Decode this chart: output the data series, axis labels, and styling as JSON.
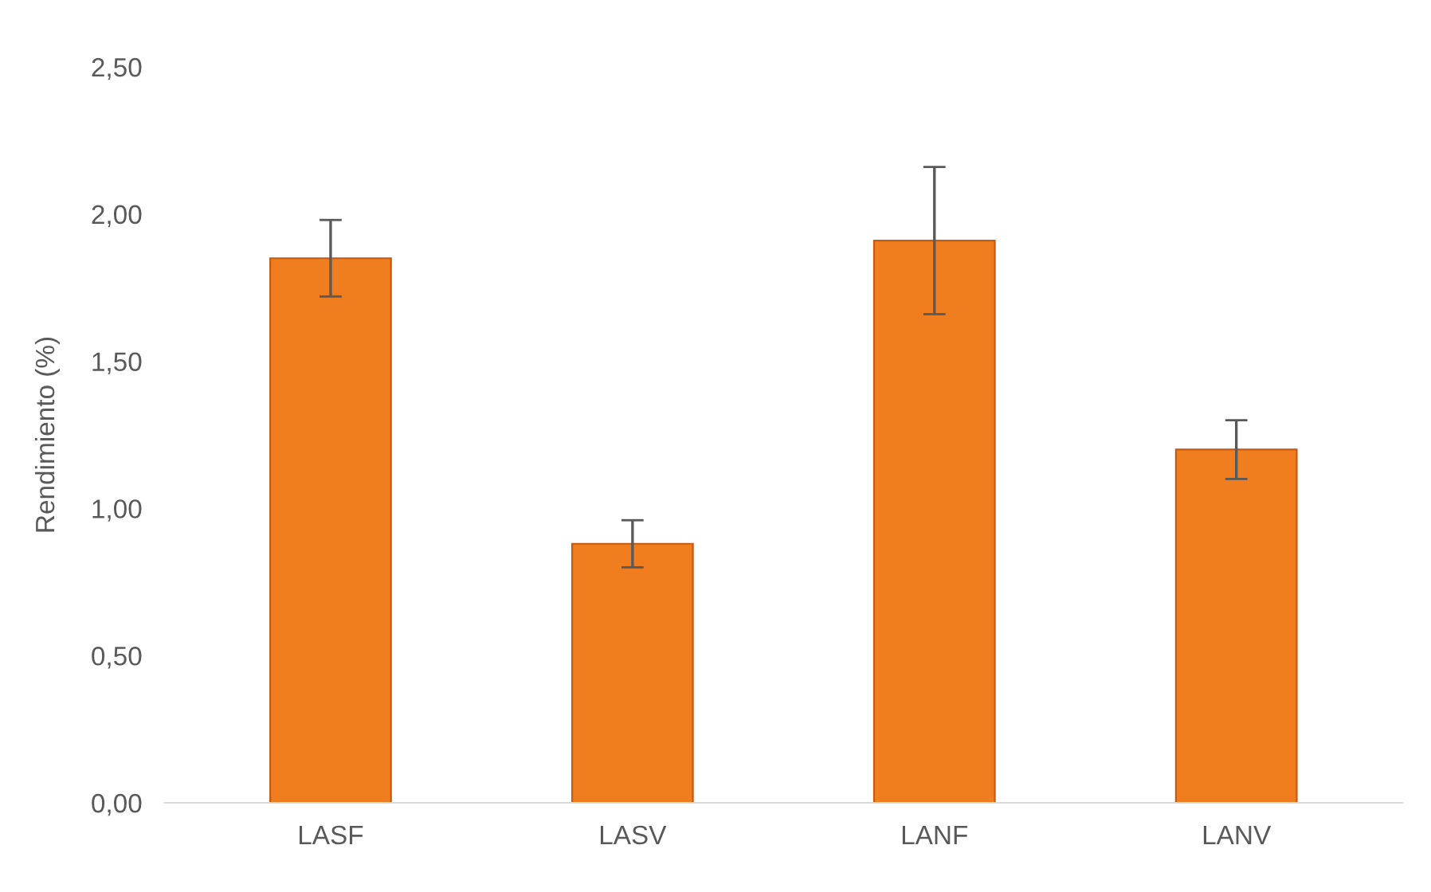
{
  "chart_data": {
    "type": "bar",
    "ylabel": "Rendimiento (%)",
    "categories": [
      "LASF",
      "LASV",
      "LANF",
      "LANV"
    ],
    "values": [
      1.85,
      0.88,
      1.91,
      1.2
    ],
    "errors": [
      0.13,
      0.08,
      0.25,
      0.1
    ],
    "color": "#f07d1e",
    "ylim": [
      0,
      2.5
    ],
    "yticks": [
      {
        "value": 0,
        "label": "0,00"
      },
      {
        "value": 0.5,
        "label": "0,50"
      },
      {
        "value": 1.0,
        "label": "1,00"
      },
      {
        "value": 1.5,
        "label": "1,50"
      },
      {
        "value": 2.0,
        "label": "2,00"
      },
      {
        "value": 2.5,
        "label": "2,50"
      }
    ],
    "grid": false
  }
}
